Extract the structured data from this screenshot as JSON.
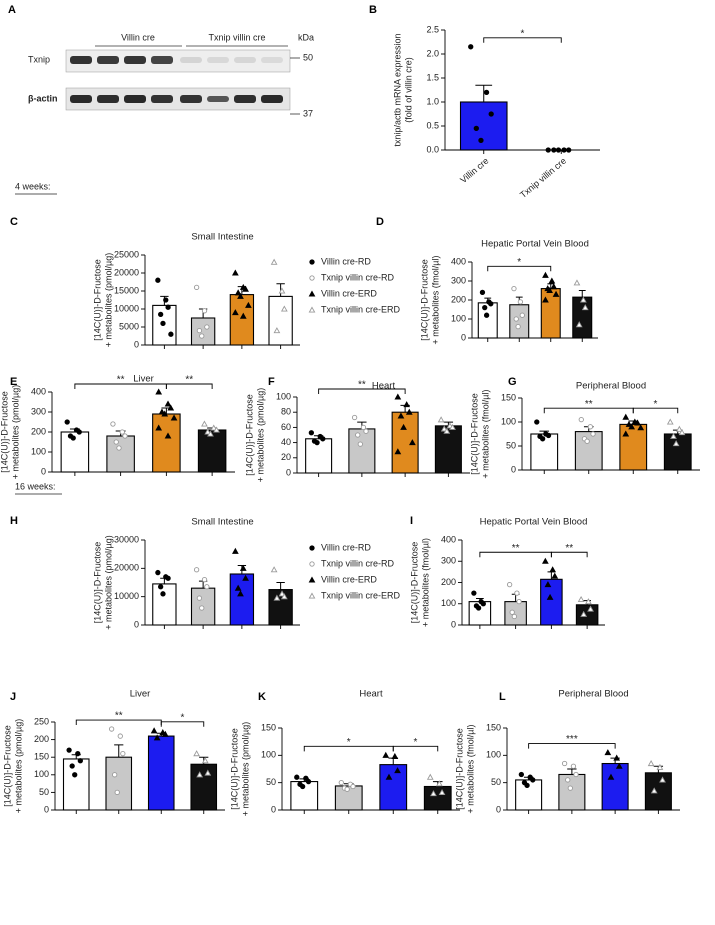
{
  "panel_a": {
    "letter": "A",
    "groups": [
      "Villin cre",
      "Txnip villin cre"
    ],
    "unit": "kDa",
    "rows": [
      "Txnip",
      "β-actin"
    ],
    "sizes": [
      50,
      37
    ]
  },
  "sections": [
    "4 weeks:",
    "16 weeks:"
  ],
  "chart_data": [
    {
      "type": "bar",
      "panel": "B",
      "ylabel": [
        "txnip/actb mRNA expression",
        "(fold of villin cre)"
      ],
      "categories": [
        "Villin cre",
        "Txnip villin cre"
      ],
      "values": [
        1.0,
        0
      ],
      "errors": [
        0.35,
        0
      ],
      "colors": [
        "#1c1cf0",
        "#1c1cf0"
      ],
      "markers": [
        "circle",
        "circle"
      ],
      "points": [
        [
          2.15,
          1.2,
          0.75,
          0.45,
          0.2
        ],
        [
          0,
          0,
          0,
          0,
          0
        ]
      ],
      "ylim": [
        0,
        2.5
      ],
      "yticks": [
        {
          "value": 0,
          "label": "0.0"
        },
        0.5,
        {
          "value": 1,
          "label": "1.0"
        },
        1.5,
        {
          "value": 2,
          "label": "2.0"
        },
        2.5
      ],
      "significance": [
        {
          "between": [
            0,
            1
          ],
          "label": "*"
        }
      ]
    },
    {
      "type": "bar",
      "panel": "C",
      "title": "Small Intestine",
      "ylabel": [
        "[14C(U)]-D-Fructose",
        "+ metabolites (pmol/µg)"
      ],
      "categories": [
        null,
        null,
        null,
        null
      ],
      "values": [
        11000,
        7500,
        14000,
        13500
      ],
      "errors": [
        2500,
        2500,
        2200,
        3500
      ],
      "colors": [
        "#ffffff",
        "#c8c8c8",
        "#e08a1e",
        "#ffffff"
      ],
      "markers": [
        "circle",
        "circle-open",
        "triangle",
        "triangle-open"
      ],
      "points": [
        [
          18000,
          12500,
          10500,
          8500,
          6000,
          3000
        ],
        [
          16000,
          9500,
          5000,
          4000,
          2500
        ],
        [
          20000,
          16000,
          15500,
          14500,
          13500,
          11000,
          9000,
          8000
        ],
        [
          23000,
          15000,
          10000,
          4000
        ]
      ],
      "ylim": [
        0,
        25000
      ],
      "yticks": [
        0,
        5000,
        10000,
        15000,
        20000,
        25000
      ],
      "significance": [],
      "legend": [
        "Villin cre-RD",
        "Txnip villin cre-RD",
        "Villin cre-ERD",
        "Txnip villin cre-ERD"
      ]
    },
    {
      "type": "bar",
      "panel": "D",
      "title": "Hepatic Portal Vein Blood",
      "ylabel": [
        "[14C(U)]-D-Fructose",
        "+ metabolites (fmol/µl)"
      ],
      "categories": [
        null,
        null,
        null,
        null
      ],
      "values": [
        185,
        175,
        260,
        215
      ],
      "errors": [
        25,
        40,
        25,
        35
      ],
      "colors": [
        "#ffffff",
        "#c8c8c8",
        "#e08a1e",
        "#111111"
      ],
      "markers": [
        "circle",
        "circle-open",
        "triangle",
        "triangle-open"
      ],
      "points": [
        [
          240,
          190,
          180,
          160,
          120
        ],
        [
          260,
          190,
          120,
          100,
          60
        ],
        [
          330,
          300,
          270,
          260,
          250,
          230,
          200
        ],
        [
          290,
          200,
          160,
          70
        ]
      ],
      "ylim": [
        0,
        400
      ],
      "yticks": [
        0,
        100,
        200,
        300,
        400
      ],
      "significance": [
        {
          "between": [
            0,
            2
          ],
          "label": "*"
        }
      ]
    },
    {
      "type": "bar",
      "panel": "E",
      "title": "Liver",
      "ylabel": [
        "[14C(U)]-D-Fructose",
        "+ metabolites  (pmol/µg)"
      ],
      "categories": [
        null,
        null,
        null,
        null
      ],
      "values": [
        200,
        180,
        290,
        210
      ],
      "errors": [
        15,
        25,
        30,
        10
      ],
      "colors": [
        "#ffffff",
        "#c8c8c8",
        "#e08a1e",
        "#111111"
      ],
      "markers": [
        "circle",
        "circle-open",
        "triangle",
        "triangle-open"
      ],
      "points": [
        [
          250,
          210,
          200,
          180,
          170
        ],
        [
          240,
          200,
          180,
          150,
          120
        ],
        [
          400,
          340,
          320,
          300,
          290,
          270,
          220,
          180
        ],
        [
          240,
          220,
          210,
          200,
          190
        ]
      ],
      "ylim": [
        0,
        400
      ],
      "yticks": [
        0,
        100,
        200,
        300,
        400
      ],
      "significance": [
        {
          "between": [
            0,
            2
          ],
          "label": "**"
        },
        {
          "between": [
            2,
            3
          ],
          "label": "**"
        }
      ]
    },
    {
      "type": "bar",
      "panel": "F",
      "title": "Heart",
      "ylabel": [
        "[14C(U)]-D-Fructose",
        "+ metabolites (pmol/µg)"
      ],
      "categories": [
        null,
        null,
        null,
        null
      ],
      "values": [
        45,
        58,
        80,
        62
      ],
      "errors": [
        4,
        9,
        9,
        5
      ],
      "colors": [
        "#ffffff",
        "#c8c8c8",
        "#e08a1e",
        "#111111"
      ],
      "markers": [
        "circle",
        "circle-open",
        "triangle",
        "triangle-open"
      ],
      "points": [
        [
          53,
          48,
          45,
          42,
          40
        ],
        [
          73,
          60,
          55,
          50,
          38
        ],
        [
          100,
          90,
          80,
          75,
          60,
          40,
          28
        ],
        [
          70,
          62,
          60,
          58,
          55
        ]
      ],
      "ylim": [
        0,
        100
      ],
      "yticks": [
        0,
        20,
        40,
        60,
        80,
        100
      ],
      "significance": [
        {
          "between": [
            0,
            2
          ],
          "label": "**"
        }
      ]
    },
    {
      "type": "bar",
      "panel": "G",
      "title": "Peripheral Blood",
      "ylabel": [
        "[14C(U)]-D-Fructose",
        "+ metabolites (fmol/µl)"
      ],
      "categories": [
        null,
        null,
        null,
        null
      ],
      "values": [
        75,
        80,
        95,
        75
      ],
      "errors": [
        6,
        10,
        7,
        8
      ],
      "colors": [
        "#ffffff",
        "#c8c8c8",
        "#e08a1e",
        "#111111"
      ],
      "markers": [
        "circle",
        "circle-open",
        "triangle",
        "triangle-open"
      ],
      "points": [
        [
          100,
          75,
          72,
          70,
          65
        ],
        [
          105,
          90,
          75,
          65,
          60
        ],
        [
          110,
          100,
          98,
          95,
          90,
          88,
          75
        ],
        [
          100,
          85,
          78,
          70,
          55
        ]
      ],
      "ylim": [
        0,
        150
      ],
      "yticks": [
        0,
        50,
        100,
        150
      ],
      "significance": [
        {
          "between": [
            0,
            2
          ],
          "label": "**"
        },
        {
          "between": [
            2,
            3
          ],
          "label": "*"
        }
      ]
    },
    {
      "type": "bar",
      "panel": "H",
      "title": "Small Intestine",
      "ylabel": [
        "[14C(U)]-D-Fructose",
        "+ metabolites (pmol/µg)"
      ],
      "categories": [
        null,
        null,
        null,
        null
      ],
      "values": [
        14500,
        13000,
        18000,
        12500
      ],
      "errors": [
        2000,
        2500,
        3000,
        2500
      ],
      "colors": [
        "#ffffff",
        "#c8c8c8",
        "#1c1cf0",
        "#111111"
      ],
      "markers": [
        "circle",
        "circle-open",
        "triangle",
        "triangle-open"
      ],
      "points": [
        [
          18500,
          17000,
          16500,
          13500,
          11000
        ],
        [
          19500,
          16000,
          13500,
          9500,
          6000
        ],
        [
          26000,
          20000,
          16500,
          13000,
          11000
        ],
        [
          19500,
          11000,
          10000,
          9500
        ]
      ],
      "ylim": [
        0,
        30000
      ],
      "yticks": [
        0,
        10000,
        20000,
        30000
      ],
      "significance": [],
      "legend": [
        "Villin cre-RD",
        "Txnip villin cre-RD",
        "Villin cre-ERD",
        "Txnip villin cre-ERD"
      ]
    },
    {
      "type": "bar",
      "panel": "I",
      "title": "Hepatic Portal Vein Blood",
      "ylabel": [
        "[14C(U)]-D-Fructose",
        "+ metabolites (fmol/µl)"
      ],
      "categories": [
        null,
        null,
        null,
        null
      ],
      "values": [
        110,
        110,
        215,
        95
      ],
      "errors": [
        15,
        35,
        35,
        20
      ],
      "colors": [
        "#ffffff",
        "#c8c8c8",
        "#1c1cf0",
        "#111111"
      ],
      "markers": [
        "circle",
        "circle-open",
        "triangle",
        "triangle-open"
      ],
      "points": [
        [
          150,
          110,
          100,
          90,
          80
        ],
        [
          190,
          150,
          110,
          60,
          40
        ],
        [
          300,
          260,
          230,
          190,
          130
        ],
        [
          120,
          110,
          75,
          50
        ]
      ],
      "ylim": [
        0,
        400
      ],
      "yticks": [
        0,
        100,
        200,
        300,
        400
      ],
      "significance": [
        {
          "between": [
            0,
            2
          ],
          "label": "**"
        },
        {
          "between": [
            2,
            3
          ],
          "label": "**"
        }
      ]
    },
    {
      "type": "bar",
      "panel": "J",
      "title": "Liver",
      "ylabel": [
        "[14C(U)]-D-Fructose",
        "+ metabolites (pmol/µg)"
      ],
      "categories": [
        null,
        null,
        null,
        null
      ],
      "values": [
        145,
        150,
        210,
        130
      ],
      "errors": [
        12,
        35,
        8,
        20
      ],
      "colors": [
        "#ffffff",
        "#c8c8c8",
        "#1c1cf0",
        "#111111"
      ],
      "markers": [
        "circle",
        "circle-open",
        "triangle",
        "triangle-open"
      ],
      "points": [
        [
          170,
          160,
          140,
          125,
          100
        ],
        [
          230,
          210,
          160,
          100,
          50
        ],
        [
          225,
          220,
          215,
          205
        ],
        [
          160,
          140,
          105,
          100
        ]
      ],
      "ylim": [
        0,
        250
      ],
      "yticks": [
        0,
        50,
        100,
        150,
        200,
        250
      ],
      "significance": [
        {
          "between": [
            0,
            2
          ],
          "label": "**"
        },
        {
          "between": [
            2,
            3
          ],
          "label": "*"
        }
      ]
    },
    {
      "type": "bar",
      "panel": "K",
      "title": "Heart",
      "ylabel": [
        "[14C(U)]-D-Fructose",
        "+ metabolites (pmol/µg)"
      ],
      "categories": [
        null,
        null,
        null,
        null
      ],
      "values": [
        52,
        44,
        83,
        43
      ],
      "errors": [
        5,
        4,
        12,
        9
      ],
      "colors": [
        "#ffffff",
        "#c8c8c8",
        "#1c1cf0",
        "#111111"
      ],
      "markers": [
        "circle",
        "circle-open",
        "triangle",
        "triangle-open"
      ],
      "points": [
        [
          60,
          58,
          52,
          47,
          43
        ],
        [
          50,
          47,
          43,
          40,
          38
        ],
        [
          100,
          98,
          72,
          60
        ],
        [
          60,
          48,
          32,
          30
        ]
      ],
      "ylim": [
        0,
        150
      ],
      "yticks": [
        0,
        50,
        100,
        150
      ],
      "significance": [
        {
          "between": [
            0,
            2
          ],
          "label": "*"
        },
        {
          "between": [
            2,
            3
          ],
          "label": "*"
        }
      ]
    },
    {
      "type": "bar",
      "panel": "L",
      "title": "Peripheral Blood",
      "ylabel": [
        "[14C(U)]-D-Fructose",
        "+ metabolites (fmol/µl)"
      ],
      "categories": [
        null,
        null,
        null,
        null
      ],
      "values": [
        55,
        65,
        85,
        68
      ],
      "errors": [
        5,
        10,
        10,
        12
      ],
      "colors": [
        "#ffffff",
        "#c8c8c8",
        "#1c1cf0",
        "#111111"
      ],
      "markers": [
        "circle",
        "circle-open",
        "triangle",
        "triangle-open"
      ],
      "points": [
        [
          65,
          60,
          55,
          50,
          45
        ],
        [
          85,
          80,
          65,
          55,
          40
        ],
        [
          105,
          95,
          80,
          60
        ],
        [
          85,
          78,
          55,
          35
        ]
      ],
      "ylim": [
        0,
        150
      ],
      "yticks": [
        0,
        50,
        100,
        150
      ],
      "significance": [
        {
          "between": [
            0,
            2
          ],
          "label": "***"
        }
      ]
    }
  ]
}
